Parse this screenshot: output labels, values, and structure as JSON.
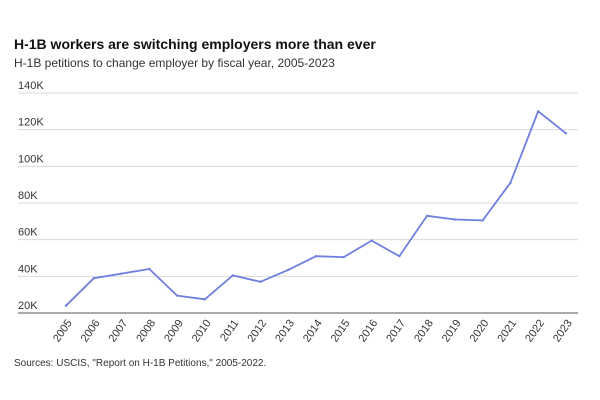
{
  "chart_data": {
    "type": "line",
    "title": "H-1B workers are switching employers more than ever",
    "subtitle": "H-1B petitions to change employer by fiscal year, 2005-2023",
    "source": "Sources: USCIS, \"Report on H-1B Petitions,\" 2005-2022.",
    "xlabel": "",
    "ylabel": "",
    "ylim": [
      20000,
      140000
    ],
    "y_ticks": [
      20000,
      40000,
      60000,
      80000,
      100000,
      120000,
      140000
    ],
    "y_tick_labels": [
      "20K",
      "40K",
      "60K",
      "80K",
      "100K",
      "120K",
      "140K"
    ],
    "x": [
      "2005",
      "2006",
      "2007",
      "2008",
      "2009",
      "2010",
      "2011",
      "2012",
      "2013",
      "2014",
      "2015",
      "2016",
      "2017",
      "2018",
      "2019",
      "2020",
      "2021",
      "2022",
      "2023"
    ],
    "series": [
      {
        "name": "H-1B petitions to change employer",
        "color": "#6f7fe0",
        "values": [
          24000,
          39000,
          41500,
          44000,
          29500,
          27500,
          40500,
          37000,
          43500,
          51000,
          50500,
          59500,
          51000,
          73000,
          71000,
          70500,
          91000,
          130000,
          118000
        ]
      }
    ],
    "grid": true
  }
}
